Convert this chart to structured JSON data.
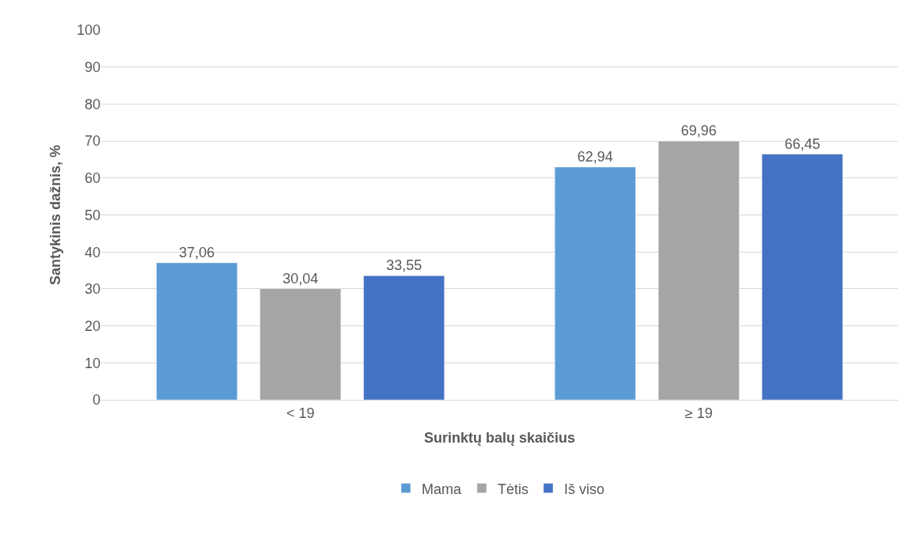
{
  "chart_data": {
    "type": "bar",
    "xlabel": "Surinktų balų skaičius",
    "ylabel": "Santykinis dažnis, %",
    "categories": [
      "< 19",
      "≥ 19"
    ],
    "series": [
      {
        "name": "Mama",
        "color": "#5b9bd5",
        "values": [
          37.06,
          62.94
        ],
        "value_labels": [
          "37,06",
          "62,94"
        ]
      },
      {
        "name": "Tėtis",
        "color": "#a5a5a5",
        "values": [
          30.04,
          69.96
        ],
        "value_labels": [
          "30,04",
          "69,96"
        ]
      },
      {
        "name": "Iš viso",
        "color": "#4472c4",
        "values": [
          33.55,
          66.45
        ],
        "value_labels": [
          "33,55",
          "66,45"
        ]
      }
    ],
    "ylim": [
      0,
      100
    ],
    "yticks": [
      0,
      10,
      20,
      30,
      40,
      50,
      60,
      70,
      80,
      90,
      100
    ],
    "grid": "y",
    "legend": "bottom"
  }
}
